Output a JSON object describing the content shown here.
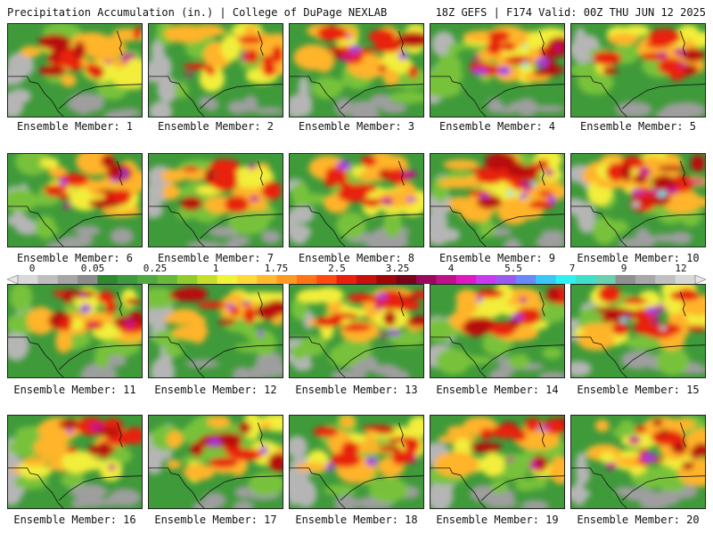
{
  "header": {
    "title": "Precipitation Accumulation (in.) | College of DuPage NEXLAB",
    "run_info": "18Z GEFS | F174 Valid: 00Z THU JUN 12 2025"
  },
  "colorbar": {
    "labels": [
      "0",
      "0.05",
      "0.25",
      "1",
      "1.75",
      "2.5",
      "3.25",
      "4",
      "5.5",
      "7",
      "9",
      "12"
    ],
    "colors": [
      "#d9d9d9",
      "#bfbfbf",
      "#a6a6a6",
      "#8c8c8c",
      "#2f8a2f",
      "#3e9a3e",
      "#50aa40",
      "#66b93a",
      "#8fcc2e",
      "#c6e02a",
      "#f2f23a",
      "#ffd83a",
      "#ffba30",
      "#ff9a20",
      "#ff7414",
      "#ff4a10",
      "#e8200c",
      "#c8100c",
      "#a00808",
      "#7a0418",
      "#9a0a5a",
      "#c0108a",
      "#e018c0",
      "#c83af0",
      "#9a5af0",
      "#6a88f8",
      "#3ac8f8",
      "#30f0f0",
      "#40e0c8",
      "#6ad0b0",
      "#909090",
      "#a8a8a8",
      "#c0c0c0",
      "#d8d8d8"
    ]
  },
  "panels": [
    {
      "label": "Ensemble Member: 1",
      "seed": 1,
      "intensity": 0.55
    },
    {
      "label": "Ensemble Member: 2",
      "seed": 2,
      "intensity": 0.25
    },
    {
      "label": "Ensemble Member: 3",
      "seed": 3,
      "intensity": 0.6
    },
    {
      "label": "Ensemble Member: 4",
      "seed": 4,
      "intensity": 0.75
    },
    {
      "label": "Ensemble Member: 5",
      "seed": 5,
      "intensity": 0.5
    },
    {
      "label": "Ensemble Member: 6",
      "seed": 6,
      "intensity": 0.6
    },
    {
      "label": "Ensemble Member: 7",
      "seed": 7,
      "intensity": 0.35
    },
    {
      "label": "Ensemble Member: 8",
      "seed": 8,
      "intensity": 0.7
    },
    {
      "label": "Ensemble Member: 9",
      "seed": 9,
      "intensity": 0.85
    },
    {
      "label": "Ensemble Member: 10",
      "seed": 10,
      "intensity": 0.75
    },
    {
      "label": "Ensemble Member: 11",
      "seed": 11,
      "intensity": 0.65
    },
    {
      "label": "Ensemble Member: 12",
      "seed": 12,
      "intensity": 0.45
    },
    {
      "label": "Ensemble Member: 13",
      "seed": 13,
      "intensity": 0.6
    },
    {
      "label": "Ensemble Member: 14",
      "seed": 14,
      "intensity": 0.45
    },
    {
      "label": "Ensemble Member: 15",
      "seed": 15,
      "intensity": 0.85
    },
    {
      "label": "Ensemble Member: 16",
      "seed": 16,
      "intensity": 0.45
    },
    {
      "label": "Ensemble Member: 17",
      "seed": 17,
      "intensity": 0.4
    },
    {
      "label": "Ensemble Member: 18",
      "seed": 18,
      "intensity": 0.5
    },
    {
      "label": "Ensemble Member: 19",
      "seed": 19,
      "intensity": 0.5
    },
    {
      "label": "Ensemble Member: 20",
      "seed": 20,
      "intensity": 0.6
    }
  ]
}
